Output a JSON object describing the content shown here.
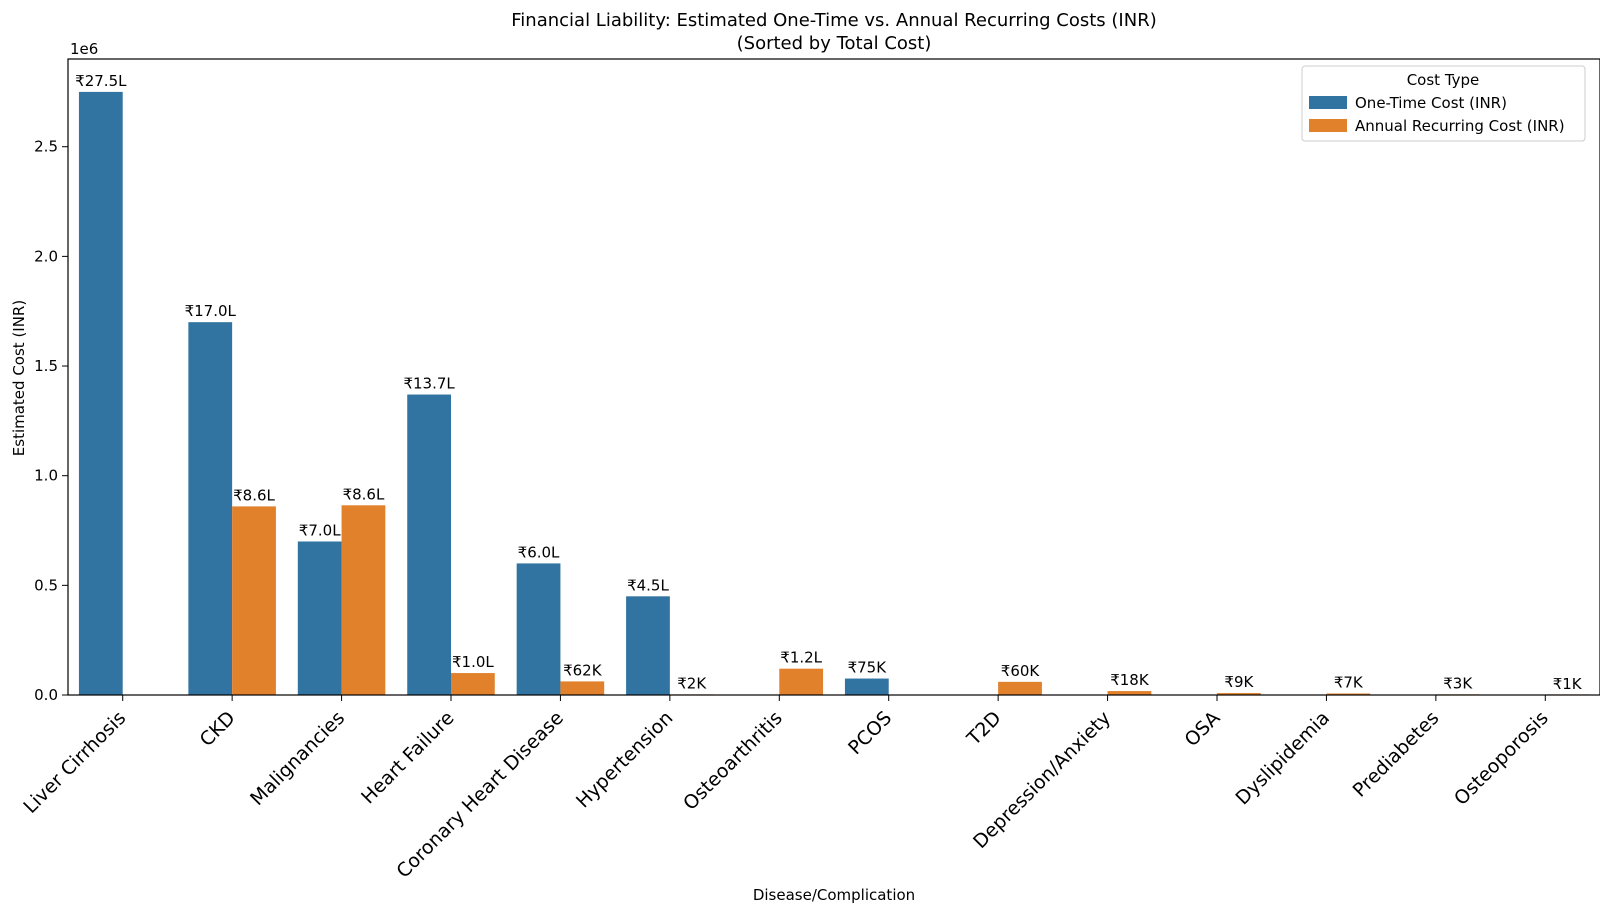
{
  "chart_data": {
    "type": "bar",
    "title_line1": "Financial Liability: Estimated One-Time vs. Annual Recurring Costs (INR)",
    "title_line2": "(Sorted by Total Cost)",
    "xlabel": "Disease/Complication",
    "ylabel": "Estimated Cost (INR)",
    "y_scale_label": "1e6",
    "ylim": [
      0,
      2900000
    ],
    "yticks": [
      {
        "value": 0,
        "label": "0.0"
      },
      {
        "value": 500000,
        "label": "0.5"
      },
      {
        "value": 1000000,
        "label": "1.0"
      },
      {
        "value": 1500000,
        "label": "1.5"
      },
      {
        "value": 2000000,
        "label": "2.0"
      },
      {
        "value": 2500000,
        "label": "2.5"
      }
    ],
    "grid": false,
    "legend": {
      "title": "Cost Type",
      "placement": "top-right"
    },
    "categories": [
      "Liver Cirrhosis",
      "CKD",
      "Malignancies",
      "Heart Failure",
      "Coronary Heart Disease",
      "Hypertension",
      "Osteoarthritis",
      "PCOS",
      "T2D",
      "Depression/Anxiety",
      "OSA",
      "Dyslipidemia",
      "Prediabetes",
      "Osteoporosis"
    ],
    "series": [
      {
        "name": "One-Time Cost (INR)",
        "color": "#3274a1",
        "values": [
          2750000,
          1700000,
          700000,
          1370000,
          600000,
          450000,
          null,
          75000,
          null,
          null,
          null,
          null,
          null,
          null
        ],
        "labels": [
          "₹27.5L",
          "₹17.0L",
          "₹7.0L",
          "₹13.7L",
          "₹6.0L",
          "₹4.5L",
          "",
          "₹75K",
          "",
          "",
          "",
          "",
          "",
          ""
        ]
      },
      {
        "name": "Annual Recurring Cost (INR)",
        "color": "#e1812c",
        "values": [
          null,
          860000,
          865000,
          100000,
          62000,
          2000,
          120000,
          null,
          60000,
          18000,
          9000,
          7000,
          3000,
          1000
        ],
        "labels": [
          "",
          "₹8.6L",
          "₹8.6L",
          "₹1.0L",
          "₹62K",
          "₹2K",
          "₹1.2L",
          "",
          "₹60K",
          "₹18K",
          "₹9K",
          "₹7K",
          "₹3K",
          "₹1K"
        ]
      }
    ]
  }
}
